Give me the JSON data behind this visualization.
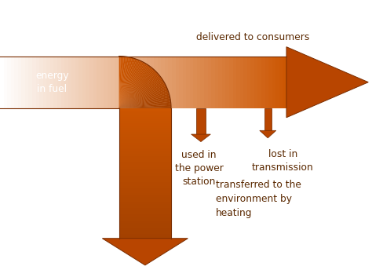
{
  "bg_color": "#ffffff",
  "arrow_dark": "#7A2D00",
  "arrow_mid": "#B84500",
  "arrow_light": "#CC5500",
  "text_color": "#5a2800",
  "label_energy": "energy\nin fuel",
  "label_delivered": "delivered to consumers",
  "label_used": "used in\nthe power\nstation",
  "label_lost": "lost in\ntransmission",
  "label_transferred": "transferred to the\nenvironment by\nheating",
  "figsize": [
    4.74,
    3.44
  ],
  "dpi": 100
}
